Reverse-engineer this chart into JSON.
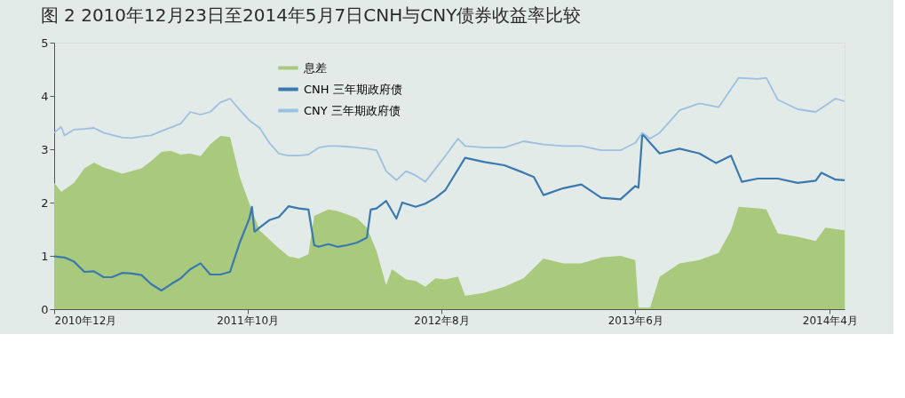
{
  "chart_data": {
    "type": "line",
    "title": "图 2 2010年12月23日至2014年5月7日CNH与CNY债券收益率比较",
    "xlim": [
      "2010-12-23",
      "2014-05-07"
    ],
    "xticks": [
      {
        "value": "2010-12-23",
        "label": "2010年12月"
      },
      {
        "value": "2011-10-20",
        "label": "2011年10月"
      },
      {
        "value": "2012-08-17",
        "label": "2012年8月"
      },
      {
        "value": "2013-06-15",
        "label": "2013年6月"
      },
      {
        "value": "2014-04-14",
        "label": "2014年4月"
      }
    ],
    "ylim": [
      0,
      5
    ],
    "yticks": [
      0,
      1,
      2,
      3,
      4,
      5
    ],
    "grid": false,
    "legend": "top left",
    "series": [
      {
        "name": "息差",
        "type": "area",
        "color": "#a9c97c",
        "x": [
          "2010-12-23",
          "2011-01-03",
          "2011-01-23",
          "2011-02-08",
          "2011-02-23",
          "2011-03-10",
          "2011-03-23",
          "2011-04-08",
          "2011-04-23",
          "2011-05-08",
          "2011-05-23",
          "2011-06-08",
          "2011-06-23",
          "2011-07-08",
          "2011-07-23",
          "2011-08-08",
          "2011-08-23",
          "2011-09-08",
          "2011-09-23",
          "2011-10-08",
          "2011-10-23",
          "2011-11-08",
          "2011-11-23",
          "2011-12-08",
          "2011-12-23",
          "2012-01-08",
          "2012-01-23",
          "2012-02-01",
          "2012-02-23",
          "2012-03-08",
          "2012-03-23",
          "2012-04-08",
          "2012-04-23",
          "2012-05-08",
          "2012-05-23",
          "2012-06-01",
          "2012-06-23",
          "2012-07-08",
          "2012-07-23",
          "2012-08-08",
          "2012-08-23",
          "2012-09-12",
          "2012-09-23",
          "2012-10-23",
          "2012-11-23",
          "2012-12-23",
          "2013-01-23",
          "2013-02-23",
          "2013-03-23",
          "2013-04-23",
          "2013-05-23",
          "2013-06-15",
          "2013-06-20",
          "2013-07-08",
          "2013-07-23",
          "2013-08-23",
          "2013-09-23",
          "2013-10-23",
          "2013-11-11",
          "2013-11-23",
          "2013-12-23",
          "2014-01-05",
          "2014-01-23",
          "2014-02-23",
          "2014-03-23",
          "2014-04-07",
          "2014-05-07"
        ],
        "values": [
          2.37,
          2.2,
          2.37,
          2.64,
          2.75,
          2.66,
          2.61,
          2.54,
          2.59,
          2.64,
          2.78,
          2.95,
          2.97,
          2.9,
          2.92,
          2.87,
          3.09,
          3.25,
          3.23,
          2.48,
          1.98,
          1.48,
          1.31,
          1.14,
          0.99,
          0.95,
          1.03,
          1.75,
          1.87,
          1.84,
          1.78,
          1.7,
          1.53,
          1.09,
          0.45,
          0.75,
          0.56,
          0.53,
          0.42,
          0.58,
          0.56,
          0.61,
          0.25,
          0.31,
          0.42,
          0.58,
          0.95,
          0.86,
          0.86,
          0.97,
          1.0,
          0.92,
          0.03,
          0.03,
          0.61,
          0.86,
          0.92,
          1.06,
          1.48,
          1.92,
          1.89,
          1.87,
          1.42,
          1.36,
          1.28,
          1.53,
          1.48
        ]
      },
      {
        "name": "CNH 三年期政府债",
        "color": "#3a78b0",
        "x": [
          "2010-12-23",
          "2011-01-08",
          "2011-01-23",
          "2011-02-08",
          "2011-02-23",
          "2011-03-10",
          "2011-03-23",
          "2011-04-08",
          "2011-04-23",
          "2011-05-08",
          "2011-05-23",
          "2011-06-08",
          "2011-06-23",
          "2011-07-08",
          "2011-07-23",
          "2011-08-08",
          "2011-08-23",
          "2011-09-08",
          "2011-09-23",
          "2011-10-08",
          "2011-10-23",
          "2011-10-27",
          "2011-10-31",
          "2011-11-08",
          "2011-11-23",
          "2011-12-08",
          "2011-12-23",
          "2012-01-08",
          "2012-01-23",
          "2012-02-01",
          "2012-02-08",
          "2012-02-23",
          "2012-03-08",
          "2012-03-23",
          "2012-04-08",
          "2012-04-23",
          "2012-04-29",
          "2012-05-08",
          "2012-05-23",
          "2012-06-08",
          "2012-06-17",
          "2012-07-08",
          "2012-07-23",
          "2012-08-08",
          "2012-08-23",
          "2012-09-23",
          "2012-10-23",
          "2012-11-23",
          "2012-12-23",
          "2013-01-08",
          "2013-01-23",
          "2013-02-23",
          "2013-03-23",
          "2013-04-23",
          "2013-05-23",
          "2013-06-15",
          "2013-06-20",
          "2013-06-26",
          "2013-07-08",
          "2013-07-23",
          "2013-08-23",
          "2013-09-23",
          "2013-10-19",
          "2013-11-11",
          "2013-11-28",
          "2013-12-23",
          "2014-01-23",
          "2014-02-23",
          "2014-03-23",
          "2014-04-01",
          "2014-04-23",
          "2014-05-07"
        ],
        "values": [
          0.99,
          0.97,
          0.89,
          0.7,
          0.71,
          0.6,
          0.6,
          0.68,
          0.67,
          0.64,
          0.47,
          0.35,
          0.47,
          0.58,
          0.75,
          0.86,
          0.65,
          0.65,
          0.7,
          1.25,
          1.7,
          1.92,
          1.45,
          1.53,
          1.67,
          1.73,
          1.93,
          1.89,
          1.87,
          1.2,
          1.17,
          1.22,
          1.17,
          1.2,
          1.25,
          1.34,
          1.87,
          1.89,
          2.03,
          1.7,
          2.0,
          1.92,
          1.98,
          2.09,
          2.23,
          2.84,
          2.76,
          2.7,
          2.56,
          2.48,
          2.14,
          2.27,
          2.34,
          2.09,
          2.06,
          2.31,
          2.28,
          3.29,
          3.12,
          2.92,
          3.01,
          2.92,
          2.74,
          2.88,
          2.39,
          2.45,
          2.45,
          2.37,
          2.41,
          2.56,
          2.43,
          2.42
        ]
      },
      {
        "name": "CNY 三年期政府债",
        "color": "#9dbfe0",
        "x": [
          "2010-12-23",
          "2011-01-03",
          "2011-01-08",
          "2011-01-23",
          "2011-02-08",
          "2011-02-23",
          "2011-03-10",
          "2011-03-23",
          "2011-04-08",
          "2011-04-23",
          "2011-05-08",
          "2011-05-23",
          "2011-06-08",
          "2011-06-23",
          "2011-07-08",
          "2011-07-23",
          "2011-08-08",
          "2011-08-23",
          "2011-09-08",
          "2011-09-23",
          "2011-10-08",
          "2011-10-23",
          "2011-11-08",
          "2011-11-23",
          "2011-12-08",
          "2011-12-23",
          "2012-01-08",
          "2012-01-23",
          "2012-02-08",
          "2012-02-23",
          "2012-03-08",
          "2012-03-23",
          "2012-04-08",
          "2012-04-23",
          "2012-05-08",
          "2012-05-23",
          "2012-06-08",
          "2012-06-23",
          "2012-07-08",
          "2012-07-23",
          "2012-08-08",
          "2012-08-23",
          "2012-09-12",
          "2012-09-23",
          "2012-10-23",
          "2012-11-23",
          "2012-12-23",
          "2013-01-23",
          "2013-02-23",
          "2013-03-23",
          "2013-04-23",
          "2013-05-23",
          "2013-06-15",
          "2013-06-26",
          "2013-07-08",
          "2013-07-23",
          "2013-08-23",
          "2013-09-23",
          "2013-10-23",
          "2013-11-23",
          "2013-12-23",
          "2014-01-05",
          "2014-01-23",
          "2014-02-23",
          "2014-03-23",
          "2014-04-23",
          "2014-05-07"
        ],
        "values": [
          3.31,
          3.42,
          3.26,
          3.37,
          3.38,
          3.4,
          3.31,
          3.27,
          3.22,
          3.21,
          3.24,
          3.26,
          3.34,
          3.41,
          3.48,
          3.7,
          3.65,
          3.7,
          3.88,
          3.95,
          3.74,
          3.54,
          3.4,
          3.12,
          2.92,
          2.88,
          2.88,
          2.9,
          3.03,
          3.06,
          3.06,
          3.05,
          3.03,
          3.01,
          2.98,
          2.59,
          2.42,
          2.59,
          2.51,
          2.39,
          2.64,
          2.87,
          3.2,
          3.06,
          3.03,
          3.03,
          3.15,
          3.09,
          3.06,
          3.06,
          2.98,
          2.98,
          3.12,
          3.31,
          3.2,
          3.31,
          3.73,
          3.86,
          3.79,
          4.34,
          4.32,
          4.34,
          3.93,
          3.75,
          3.7,
          3.95,
          3.9
        ]
      }
    ]
  }
}
